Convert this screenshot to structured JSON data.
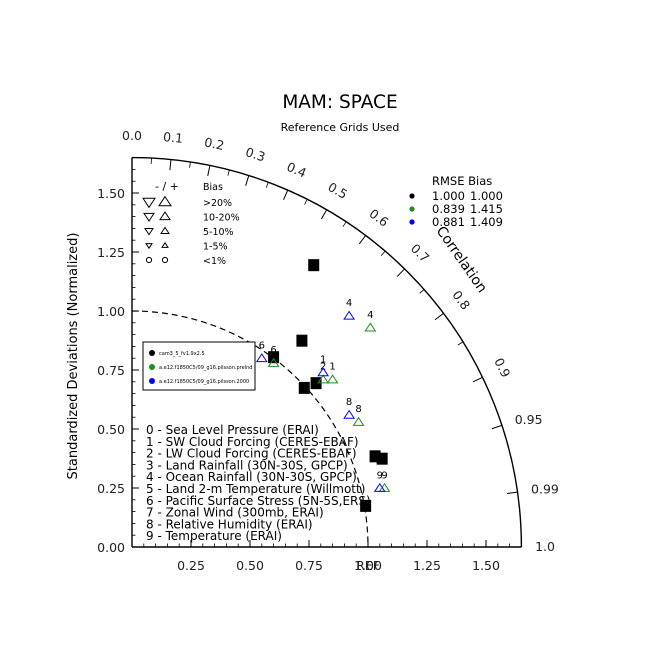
{
  "chart_data": {
    "type": "scatter",
    "title": "MAM: SPACE",
    "subtitle": "Reference Grids Used",
    "ylabel": "Standardized Deviations (Normalized)",
    "arc_label": "Correlation",
    "ref_label": "REF",
    "axis_range": [
      0,
      1.65
    ],
    "x_ticks": [
      "0.25",
      "0.50",
      "0.75",
      "1.00",
      "1.25",
      "1.50"
    ],
    "y_ticks": [
      "0.00",
      "0.25",
      "0.50",
      "0.75",
      "1.00",
      "1.25",
      "1.50"
    ],
    "corr_ticks": [
      {
        "value": 0.0,
        "label": "0.0"
      },
      {
        "value": 0.1,
        "label": "0.1"
      },
      {
        "value": 0.2,
        "label": "0.2"
      },
      {
        "value": 0.3,
        "label": "0.3"
      },
      {
        "value": 0.4,
        "label": "0.4"
      },
      {
        "value": 0.5,
        "label": "0.5"
      },
      {
        "value": 0.6,
        "label": "0.6"
      },
      {
        "value": 0.7,
        "label": "0.7"
      },
      {
        "value": 0.8,
        "label": "0.8"
      },
      {
        "value": 0.9,
        "label": "0.9"
      },
      {
        "value": 0.95,
        "label": "0.95"
      },
      {
        "value": 0.99,
        "label": "0.99"
      },
      {
        "value": 1.0,
        "label": "1.0"
      }
    ],
    "bias_legend": {
      "header_left": "-   /   +",
      "header_right": "Bias",
      "rows": [
        ">20%",
        "10-20%",
        "5-10%",
        "1-5%",
        "<1%"
      ]
    },
    "rmse_table": {
      "header": "RMSE  Bias",
      "rows": [
        {
          "color": "#000000",
          "rmse": "1.000",
          "bias": "1.000"
        },
        {
          "color": "#228B22",
          "rmse": "0.839",
          "bias": "1.415"
        },
        {
          "color": "#0000FF",
          "rmse": "0.881",
          "bias": "1.409"
        }
      ]
    },
    "cases": [
      {
        "name": "cam3_5_fv1.9x2.5",
        "color": "#000000"
      },
      {
        "name": "a.e12.f1850C5/09_g16.pilsson.prelnd",
        "color": "#228B22"
      },
      {
        "name": "a.e12.f1850C5/09_g16.pilsson.2000",
        "color": "#0000FF"
      }
    ],
    "variables": [
      "0 - Sea Level Pressure (ERAI)",
      "1 - SW Cloud Forcing (CERES-EBAF)",
      "2 - LW Cloud Forcing (CERES-EBAF)",
      "3 - Land Rainfall (30N-30S, GPCP)",
      "4 - Ocean Rainfall (30N-30S, GPCP)",
      "5 - Land 2-m Temperature (Willmott)",
      "6 - Pacific Surface Stress (5N-5S,ERS)",
      "7 - Zonal Wind (300mb, ERAI)",
      "8 - Relative Humidity (ERAI)",
      "9 - Temperature (ERAI)"
    ],
    "series": [
      {
        "name": "cam3_5_fv1.9x2.5",
        "points": [
          {
            "id": "0",
            "x": 1.06,
            "y": 0.37
          },
          {
            "id": "2",
            "x": 0.72,
            "y": 0.87
          },
          {
            "id": "3",
            "x": 0.73,
            "y": 0.67
          },
          {
            "id": "4",
            "x": 0.77,
            "y": 1.19
          },
          {
            "id": "5",
            "x": 0.99,
            "y": 0.17
          },
          {
            "id": "6",
            "x": 0.6,
            "y": 0.8
          },
          {
            "id": "7",
            "x": 1.03,
            "y": 0.38
          },
          {
            "id": "8",
            "x": 0.78,
            "y": 0.69
          }
        ]
      },
      {
        "name": "a.e12.f1850C5/09_g16.pilsson.prelnd",
        "points": [
          {
            "id": "1",
            "x": 0.85,
            "y": 0.73
          },
          {
            "id": "2",
            "x": 0.81,
            "y": 0.73
          },
          {
            "id": "4",
            "x": 1.01,
            "y": 0.95
          },
          {
            "id": "6",
            "x": 0.6,
            "y": 0.8
          },
          {
            "id": "8",
            "x": 0.96,
            "y": 0.55
          },
          {
            "id": "9",
            "x": 1.07,
            "y": 0.27
          }
        ]
      },
      {
        "name": "a.e12.f1850C5/09_g16.pilsson.2000",
        "points": [
          {
            "id": "1",
            "x": 0.81,
            "y": 0.76
          },
          {
            "id": "4",
            "x": 0.92,
            "y": 1.0
          },
          {
            "id": "6",
            "x": 0.55,
            "y": 0.82
          },
          {
            "id": "8",
            "x": 0.92,
            "y": 0.58
          },
          {
            "id": "9",
            "x": 1.05,
            "y": 0.27
          }
        ]
      }
    ]
  }
}
